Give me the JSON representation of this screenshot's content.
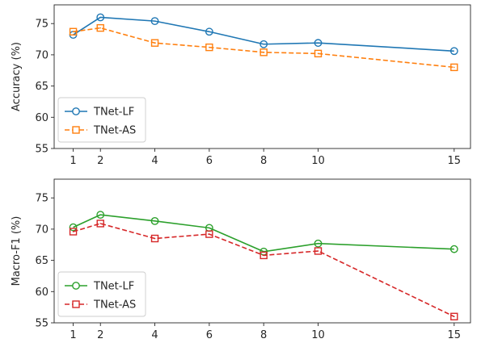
{
  "chart_data": [
    {
      "type": "line",
      "ylabel": "Accuracy (%)",
      "xlabel": "",
      "x": [
        1,
        2,
        4,
        6,
        8,
        10,
        15
      ],
      "xticks": [
        "1",
        "2",
        "4",
        "6",
        "8",
        "10",
        "15"
      ],
      "xlim": [
        0.3,
        15.6
      ],
      "ylim": [
        55,
        78
      ],
      "yticks": [
        "55",
        "60",
        "65",
        "70",
        "75"
      ],
      "legend_position": "lower-left",
      "series": [
        {
          "name": "TNet-LF",
          "values": [
            73.2,
            76.0,
            75.4,
            73.7,
            71.7,
            71.9,
            70.6
          ],
          "color": "#1f77b4",
          "linestyle": "solid",
          "marker": "circle"
        },
        {
          "name": "TNet-AS",
          "values": [
            73.7,
            74.3,
            71.9,
            71.2,
            70.4,
            70.2,
            68.0
          ],
          "color": "#ff7f0e",
          "linestyle": "dashed",
          "marker": "square"
        }
      ]
    },
    {
      "type": "line",
      "ylabel": "Macro-F1 (%)",
      "xlabel": "",
      "x": [
        1,
        2,
        4,
        6,
        8,
        10,
        15
      ],
      "xticks": [
        "1",
        "2",
        "4",
        "6",
        "8",
        "10",
        "15"
      ],
      "xlim": [
        0.3,
        15.6
      ],
      "ylim": [
        55,
        78
      ],
      "yticks": [
        "55",
        "60",
        "65",
        "70",
        "75"
      ],
      "legend_position": "lower-left",
      "series": [
        {
          "name": "TNet-LF",
          "values": [
            70.3,
            72.3,
            71.3,
            70.2,
            66.4,
            67.7,
            66.8
          ],
          "color": "#2ca02c",
          "linestyle": "solid",
          "marker": "circle"
        },
        {
          "name": "TNet-AS",
          "values": [
            69.6,
            70.9,
            68.5,
            69.2,
            65.8,
            66.5,
            56.0
          ],
          "color": "#d62728",
          "linestyle": "dashed",
          "marker": "square"
        }
      ]
    }
  ]
}
